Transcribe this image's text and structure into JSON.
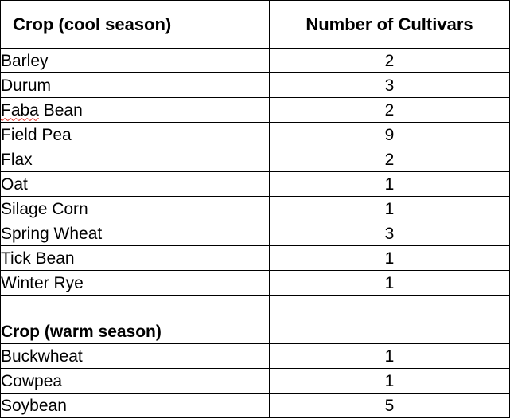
{
  "table": {
    "header": {
      "crop": "Crop (cool season)",
      "count": "Number of Cultivars"
    },
    "cool_season": [
      {
        "crop": "Barley",
        "count": "2"
      },
      {
        "crop": "Durum",
        "count": "3"
      },
      {
        "crop_flagged": "Faba",
        "crop_rest": " Bean",
        "count": "2"
      },
      {
        "crop": "Field Pea",
        "count": "9"
      },
      {
        "crop": "Flax",
        "count": "2"
      },
      {
        "crop": "Oat",
        "count": "1"
      },
      {
        "crop": "Silage Corn",
        "count": "1"
      },
      {
        "crop": "Spring Wheat",
        "count": "3"
      },
      {
        "crop": "Tick Bean",
        "count": "1"
      },
      {
        "crop": "Winter Rye",
        "count": "1"
      }
    ],
    "warm_section_title": "Crop (warm season)",
    "warm_season": [
      {
        "crop": "Buckwheat",
        "count": "1"
      },
      {
        "crop": "Cowpea",
        "count": "1"
      },
      {
        "crop": "Soybean",
        "count": "5"
      }
    ],
    "spellcheck_underline_color": "#e0241a"
  }
}
